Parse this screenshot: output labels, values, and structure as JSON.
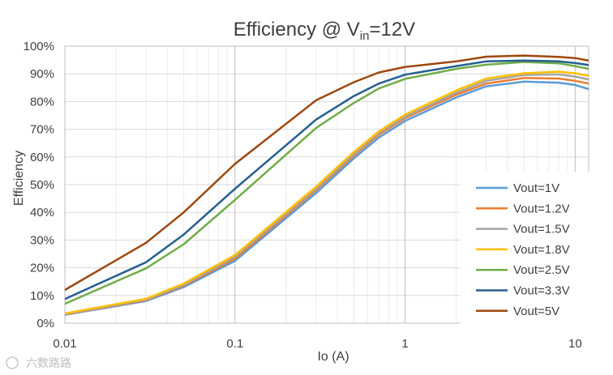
{
  "chart_data": {
    "type": "line",
    "title": {
      "prefix": "Efficiency @ V",
      "subscript": "in",
      "suffix": "=12V"
    },
    "xlabel": "Io (A)",
    "ylabel": "Efficiency",
    "xscale": "log",
    "xlim": [
      0.01,
      12
    ],
    "ylim": [
      0,
      100
    ],
    "x_ticks": [
      {
        "value": 0.01,
        "label": "0.01"
      },
      {
        "value": 0.1,
        "label": "0.1"
      },
      {
        "value": 1,
        "label": "1"
      },
      {
        "value": 10,
        "label": "10"
      }
    ],
    "y_ticks": [
      {
        "value": 0,
        "label": "0%"
      },
      {
        "value": 10,
        "label": "10%"
      },
      {
        "value": 20,
        "label": "20%"
      },
      {
        "value": 30,
        "label": "30%"
      },
      {
        "value": 40,
        "label": "40%"
      },
      {
        "value": 50,
        "label": "50%"
      },
      {
        "value": 60,
        "label": "60%"
      },
      {
        "value": 70,
        "label": "70%"
      },
      {
        "value": 80,
        "label": "80%"
      },
      {
        "value": 90,
        "label": "90%"
      },
      {
        "value": 100,
        "label": "100%"
      }
    ],
    "grid": true,
    "legend_position": "bottom-right",
    "x": [
      0.01,
      0.03,
      0.05,
      0.1,
      0.3,
      0.5,
      0.7,
      1,
      2,
      3,
      5,
      8,
      10,
      12
    ],
    "series": [
      {
        "name": "Vout=1V",
        "color": "#5B9BD5",
        "values": [
          3.0,
          8.0,
          13.0,
          22.5,
          47.0,
          59.5,
          67.0,
          73.0,
          81.5,
          85.5,
          87.2,
          86.8,
          86.0,
          84.5
        ]
      },
      {
        "name": "Vout=1.2V",
        "color": "#ED7D31",
        "values": [
          3.2,
          8.3,
          13.5,
          23.3,
          48.0,
          60.5,
          68.0,
          74.0,
          82.5,
          86.5,
          88.5,
          88.3,
          87.5,
          86.5
        ]
      },
      {
        "name": "Vout=1.5V",
        "color": "#A5A5A5",
        "values": [
          3.3,
          8.5,
          13.8,
          24.0,
          48.6,
          61.0,
          68.6,
          74.5,
          83.2,
          87.5,
          89.6,
          89.8,
          89.0,
          88.0
        ]
      },
      {
        "name": "Vout=1.8V",
        "color": "#FFC000",
        "values": [
          3.5,
          8.8,
          14.3,
          24.6,
          49.3,
          61.8,
          69.2,
          75.3,
          84.0,
          88.3,
          90.2,
          90.8,
          90.2,
          89.3
        ]
      },
      {
        "name": "Vout=2.5V",
        "color": "#70AD47",
        "values": [
          7.0,
          19.8,
          28.5,
          44.5,
          70.5,
          79.5,
          84.7,
          88.2,
          91.8,
          93.3,
          94.3,
          93.8,
          92.8,
          91.8
        ]
      },
      {
        "name": "Vout=3.3V",
        "color": "#255E91",
        "values": [
          8.7,
          22.0,
          32.0,
          48.5,
          73.5,
          82.0,
          86.5,
          89.7,
          92.8,
          94.5,
          94.8,
          94.5,
          93.9,
          93.2
        ]
      },
      {
        "name": "Vout=5V",
        "color": "#9E480E",
        "values": [
          12.0,
          29.0,
          40.0,
          57.5,
          80.5,
          87.0,
          90.5,
          92.5,
          94.5,
          96.2,
          96.6,
          96.1,
          95.7,
          94.8
        ]
      }
    ]
  },
  "watermark": "六数路路"
}
